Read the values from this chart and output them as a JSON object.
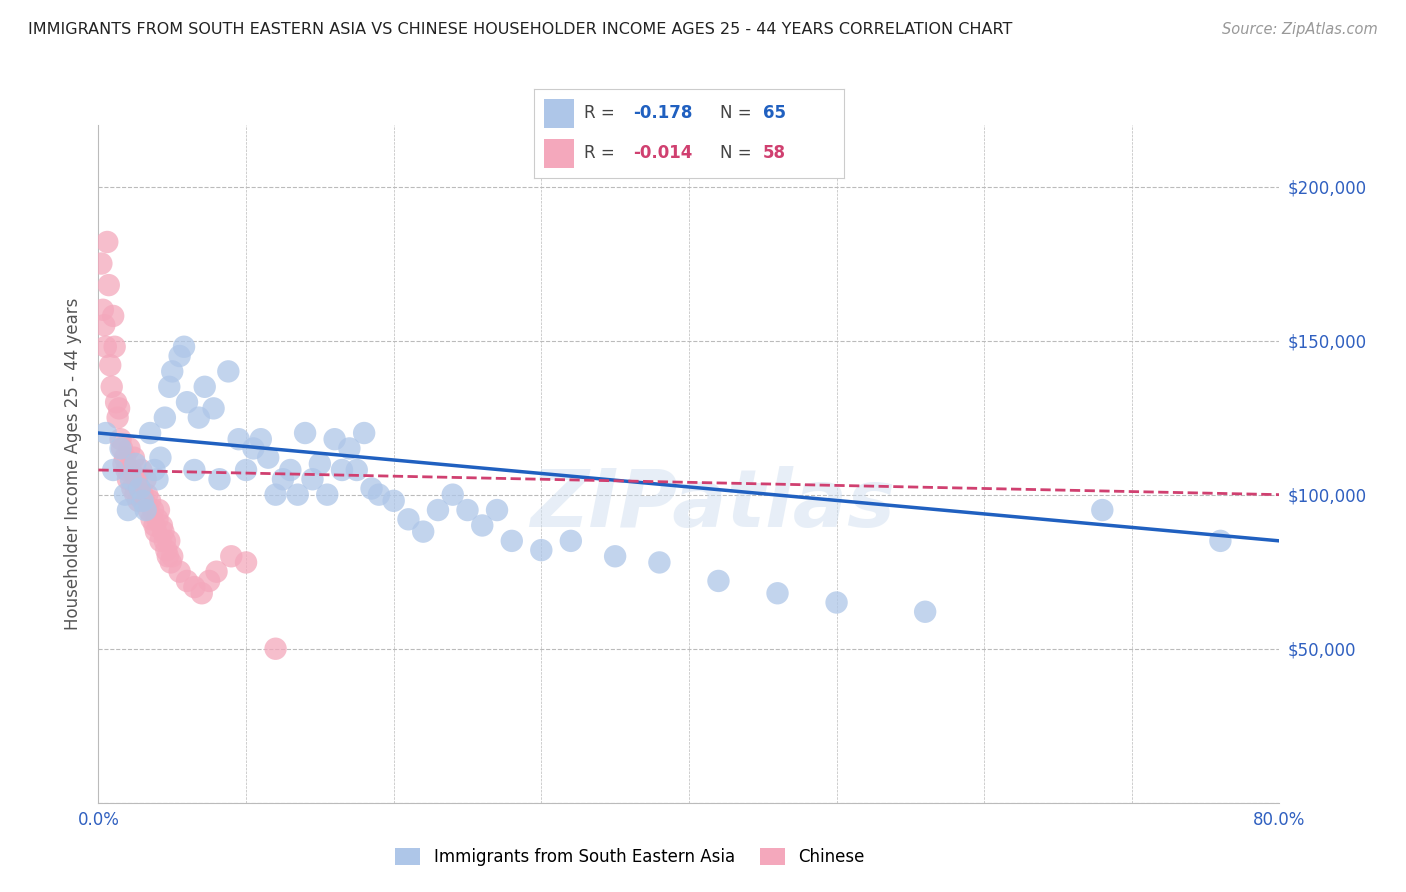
{
  "title": "IMMIGRANTS FROM SOUTH EASTERN ASIA VS CHINESE HOUSEHOLDER INCOME AGES 25 - 44 YEARS CORRELATION CHART",
  "source": "Source: ZipAtlas.com",
  "ylabel": "Householder Income Ages 25 - 44 years",
  "xlim": [
    0.0,
    0.8
  ],
  "ylim": [
    0,
    220000
  ],
  "yticks": [
    0,
    50000,
    100000,
    150000,
    200000
  ],
  "ytick_labels": [
    "",
    "$50,000",
    "$100,000",
    "$150,000",
    "$200,000"
  ],
  "xticks": [
    0.0,
    0.1,
    0.2,
    0.3,
    0.4,
    0.5,
    0.6,
    0.7,
    0.8
  ],
  "xtick_labels": [
    "0.0%",
    "",
    "",
    "",
    "",
    "",
    "",
    "",
    "80.0%"
  ],
  "series1_label": "Immigrants from South Eastern Asia",
  "series1_R": "-0.178",
  "series1_N": "65",
  "series1_color": "#aec6e8",
  "series1_line_color": "#2060c0",
  "series2_label": "Chinese",
  "series2_R": "-0.014",
  "series2_N": "58",
  "series2_color": "#f4a8bc",
  "series2_line_color": "#d04070",
  "background_color": "#ffffff",
  "grid_color": "#bbbbbb",
  "title_color": "#333333",
  "axis_label_color": "#555555",
  "tick_label_color": "#3060c0",
  "watermark": "ZIPatlas",
  "series1_x": [
    0.005,
    0.01,
    0.015,
    0.018,
    0.02,
    0.022,
    0.025,
    0.028,
    0.03,
    0.032,
    0.035,
    0.038,
    0.04,
    0.042,
    0.045,
    0.048,
    0.05,
    0.055,
    0.058,
    0.06,
    0.065,
    0.068,
    0.072,
    0.078,
    0.082,
    0.088,
    0.095,
    0.1,
    0.105,
    0.11,
    0.115,
    0.12,
    0.125,
    0.13,
    0.135,
    0.14,
    0.145,
    0.15,
    0.155,
    0.16,
    0.165,
    0.17,
    0.175,
    0.18,
    0.185,
    0.19,
    0.2,
    0.21,
    0.22,
    0.23,
    0.24,
    0.25,
    0.26,
    0.27,
    0.28,
    0.3,
    0.32,
    0.35,
    0.38,
    0.42,
    0.46,
    0.5,
    0.56,
    0.68,
    0.76
  ],
  "series1_y": [
    120000,
    108000,
    115000,
    100000,
    95000,
    105000,
    110000,
    102000,
    98000,
    95000,
    120000,
    108000,
    105000,
    112000,
    125000,
    135000,
    140000,
    145000,
    148000,
    130000,
    108000,
    125000,
    135000,
    128000,
    105000,
    140000,
    118000,
    108000,
    115000,
    118000,
    112000,
    100000,
    105000,
    108000,
    100000,
    120000,
    105000,
    110000,
    100000,
    118000,
    108000,
    115000,
    108000,
    120000,
    102000,
    100000,
    98000,
    92000,
    88000,
    95000,
    100000,
    95000,
    90000,
    95000,
    85000,
    82000,
    85000,
    80000,
    78000,
    72000,
    68000,
    65000,
    62000,
    95000,
    85000
  ],
  "series2_x": [
    0.002,
    0.003,
    0.004,
    0.005,
    0.006,
    0.007,
    0.008,
    0.009,
    0.01,
    0.011,
    0.012,
    0.013,
    0.014,
    0.015,
    0.016,
    0.017,
    0.018,
    0.019,
    0.02,
    0.021,
    0.022,
    0.023,
    0.024,
    0.025,
    0.026,
    0.027,
    0.028,
    0.029,
    0.03,
    0.031,
    0.032,
    0.033,
    0.034,
    0.035,
    0.036,
    0.037,
    0.038,
    0.039,
    0.04,
    0.041,
    0.042,
    0.043,
    0.044,
    0.045,
    0.046,
    0.047,
    0.048,
    0.049,
    0.05,
    0.055,
    0.06,
    0.065,
    0.07,
    0.075,
    0.08,
    0.09,
    0.1,
    0.12
  ],
  "series2_y": [
    175000,
    160000,
    155000,
    148000,
    182000,
    168000,
    142000,
    135000,
    158000,
    148000,
    130000,
    125000,
    128000,
    118000,
    115000,
    110000,
    112000,
    108000,
    105000,
    115000,
    108000,
    102000,
    112000,
    100000,
    105000,
    98000,
    102000,
    108000,
    100000,
    98000,
    105000,
    100000,
    95000,
    98000,
    92000,
    95000,
    90000,
    88000,
    92000,
    95000,
    85000,
    90000,
    88000,
    85000,
    82000,
    80000,
    85000,
    78000,
    80000,
    75000,
    72000,
    70000,
    68000,
    72000,
    75000,
    80000,
    78000,
    50000
  ]
}
